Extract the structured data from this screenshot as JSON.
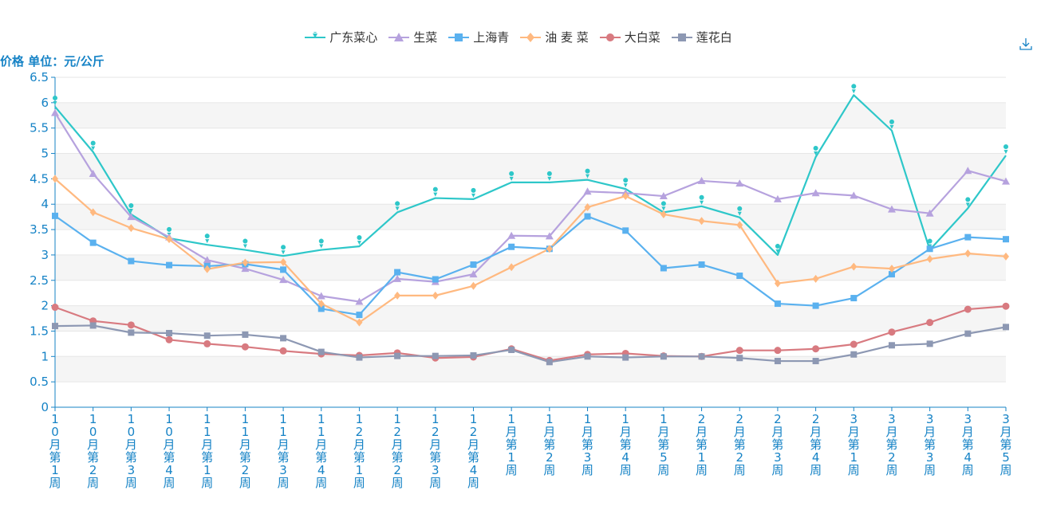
{
  "legend": [
    "广东菜心",
    "生菜",
    "上海青",
    "油 麦 菜",
    "大白菜",
    "莲花白"
  ],
  "y_axis_label": "价格 单位：元/公斤",
  "toolbar": {
    "download_icon": "download-icon"
  },
  "colors": {
    "axis": "#1683c6",
    "grid_band": "#f5f5f5",
    "grid_line": "#e6e6e6"
  },
  "chart_data": {
    "type": "line",
    "title": "",
    "ylabel": "价格 单位：元/公斤",
    "ylim": [
      0,
      6.5
    ],
    "yticks": [
      "0",
      "0.5",
      "1",
      "1.5",
      "2",
      "2.5",
      "3",
      "3.5",
      "4",
      "4.5",
      "5",
      "5.5",
      "6",
      "6.5"
    ],
    "categories": [
      "10月第1周",
      "10月第2周",
      "10月第3周",
      "10月第4周",
      "11月第1周",
      "11月第2周",
      "11月第3周",
      "11月第4周",
      "12月第1周",
      "12月第2周",
      "12月第3周",
      "12月第4周",
      "1月第1周",
      "1月第2周",
      "1月第3周",
      "1月第4周",
      "1月第5周",
      "2月第1周",
      "2月第2周",
      "2月第3周",
      "2月第4周",
      "3月第1周",
      "3月第2周",
      "3月第3周",
      "3月第4周",
      "3月第5周"
    ],
    "series": [
      {
        "name": "广东菜心",
        "color": "#2ec7c9",
        "symbol": "pin",
        "values": [
          5.92,
          5.03,
          3.8,
          3.33,
          3.2,
          3.1,
          2.98,
          3.1,
          3.17,
          3.84,
          4.12,
          4.1,
          4.43,
          4.43,
          4.48,
          4.3,
          3.84,
          3.96,
          3.74,
          3.0,
          4.93,
          6.15,
          5.45,
          3.1,
          3.92,
          4.96
        ]
      },
      {
        "name": "生菜",
        "color": "#b6a2de",
        "symbol": "triangle",
        "values": [
          5.8,
          4.6,
          3.75,
          3.35,
          2.9,
          2.73,
          2.51,
          2.19,
          2.08,
          2.53,
          2.47,
          2.62,
          3.38,
          3.37,
          4.25,
          4.22,
          4.16,
          4.46,
          4.41,
          4.1,
          4.22,
          4.17,
          3.9,
          3.82,
          4.66,
          4.45
        ]
      },
      {
        "name": "上海青",
        "color": "#5ab1ef",
        "symbol": "square",
        "values": [
          3.77,
          3.24,
          2.88,
          2.8,
          2.78,
          2.82,
          2.71,
          1.94,
          1.82,
          2.66,
          2.52,
          2.81,
          3.16,
          3.12,
          3.76,
          3.48,
          2.74,
          2.81,
          2.59,
          2.04,
          2.0,
          2.15,
          2.62,
          3.12,
          3.35,
          3.31
        ]
      },
      {
        "name": "油 麦 菜",
        "color": "#ffb980",
        "symbol": "diamond",
        "values": [
          4.5,
          3.84,
          3.53,
          3.31,
          2.72,
          2.85,
          2.86,
          2.04,
          1.67,
          2.2,
          2.2,
          2.39,
          2.76,
          3.12,
          3.94,
          4.16,
          3.8,
          3.67,
          3.59,
          2.44,
          2.53,
          2.77,
          2.73,
          2.92,
          3.03,
          2.97
        ]
      },
      {
        "name": "大白菜",
        "color": "#d87a80",
        "symbol": "circle",
        "values": [
          1.97,
          1.7,
          1.62,
          1.33,
          1.25,
          1.19,
          1.11,
          1.05,
          1.02,
          1.07,
          0.97,
          0.99,
          1.15,
          0.92,
          1.04,
          1.06,
          1.01,
          1.0,
          1.12,
          1.12,
          1.15,
          1.24,
          1.48,
          1.67,
          1.93,
          1.99
        ]
      },
      {
        "name": "莲花白",
        "color": "#8d98b3",
        "symbol": "square",
        "values": [
          1.6,
          1.61,
          1.47,
          1.46,
          1.41,
          1.43,
          1.36,
          1.09,
          0.98,
          1.01,
          1.01,
          1.02,
          1.13,
          0.89,
          1.0,
          0.98,
          1.0,
          1.0,
          0.97,
          0.91,
          0.91,
          1.04,
          1.22,
          1.25,
          1.45,
          1.58
        ]
      }
    ],
    "legend_position": "top-center",
    "grid": true
  }
}
